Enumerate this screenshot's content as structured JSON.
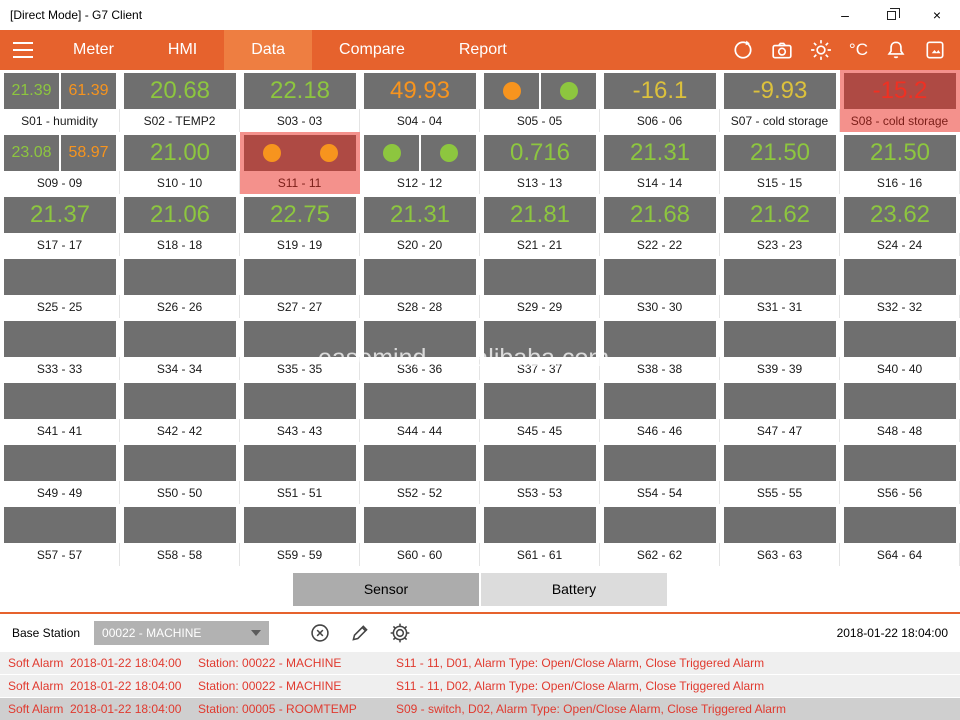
{
  "window": {
    "title": "[Direct Mode] - G7 Client",
    "minimize_glyph": "–",
    "close_glyph": "×"
  },
  "nav": {
    "items": [
      "Meter",
      "HMI",
      "Data",
      "Compare",
      "Report"
    ],
    "active": "Data",
    "temp_unit": "°C"
  },
  "colors": {
    "accent_orange": "#E6622D",
    "active_tab": "#EE7E41",
    "value_green": "#8DC63F",
    "value_orange": "#F7941E",
    "value_yellow": "#DCC13C",
    "value_red": "#F03022",
    "alarm_tile_bg": "#F4918C",
    "alarm_box_bg": "#AE4A44"
  },
  "grid": {
    "tiles": [
      {
        "label": "S01 - humidity",
        "type": "dual",
        "values": [
          {
            "text": "21.39",
            "color": "green"
          },
          {
            "text": "61.39",
            "color": "orange"
          }
        ]
      },
      {
        "label": "S02 - TEMP2",
        "type": "value",
        "value": "20.68",
        "color": "green"
      },
      {
        "label": "S03 - 03",
        "type": "value",
        "value": "22.18",
        "color": "green"
      },
      {
        "label": "S04 - 04",
        "type": "value",
        "value": "49.93",
        "color": "orange"
      },
      {
        "label": "S05 - 05",
        "type": "circles",
        "dots": [
          "orange",
          "green"
        ]
      },
      {
        "label": "S06 - 06",
        "type": "value",
        "value": "-16.1",
        "color": "yellow"
      },
      {
        "label": "S07 - cold storage",
        "type": "value",
        "value": "-9.93",
        "color": "yellow"
      },
      {
        "label": "S08 - cold storage",
        "type": "value",
        "value": "-15.2",
        "color": "red",
        "alarm": true
      },
      {
        "label": "S09 - 09",
        "type": "dual",
        "values": [
          {
            "text": "23.08",
            "color": "green"
          },
          {
            "text": "58.97",
            "color": "orange"
          }
        ]
      },
      {
        "label": "S10 - 10",
        "type": "value",
        "value": "21.00",
        "color": "green"
      },
      {
        "label": "S11 - 11",
        "type": "circles",
        "dots": [
          "orange",
          "orange"
        ],
        "alarm": true
      },
      {
        "label": "S12 - 12",
        "type": "circles",
        "dots": [
          "green",
          "green"
        ]
      },
      {
        "label": "S13 - 13",
        "type": "value",
        "value": "0.716",
        "color": "green"
      },
      {
        "label": "S14 - 14",
        "type": "value",
        "value": "21.31",
        "color": "green"
      },
      {
        "label": "S15 - 15",
        "type": "value",
        "value": "21.50",
        "color": "green"
      },
      {
        "label": "S16 - 16",
        "type": "value",
        "value": "21.50",
        "color": "green"
      },
      {
        "label": "S17 - 17",
        "type": "value",
        "value": "21.37",
        "color": "green"
      },
      {
        "label": "S18 - 18",
        "type": "value",
        "value": "21.06",
        "color": "green"
      },
      {
        "label": "S19 - 19",
        "type": "value",
        "value": "22.75",
        "color": "green"
      },
      {
        "label": "S20 - 20",
        "type": "value",
        "value": "21.31",
        "color": "green"
      },
      {
        "label": "S21 - 21",
        "type": "value",
        "value": "21.81",
        "color": "green"
      },
      {
        "label": "S22 - 22",
        "type": "value",
        "value": "21.68",
        "color": "green"
      },
      {
        "label": "S23 - 23",
        "type": "value",
        "value": "21.62",
        "color": "green"
      },
      {
        "label": "S24 - 24",
        "type": "value",
        "value": "23.62",
        "color": "green"
      },
      {
        "label": "S25 - 25",
        "type": "empty"
      },
      {
        "label": "S26 - 26",
        "type": "empty"
      },
      {
        "label": "S27 - 27",
        "type": "empty"
      },
      {
        "label": "S28 - 28",
        "type": "empty"
      },
      {
        "label": "S29 - 29",
        "type": "empty"
      },
      {
        "label": "S30 - 30",
        "type": "empty"
      },
      {
        "label": "S31 - 31",
        "type": "empty"
      },
      {
        "label": "S32 - 32",
        "type": "empty"
      },
      {
        "label": "S33 - 33",
        "type": "empty"
      },
      {
        "label": "S34 - 34",
        "type": "empty"
      },
      {
        "label": "S35 - 35",
        "type": "empty"
      },
      {
        "label": "S36 - 36",
        "type": "empty"
      },
      {
        "label": "S37 - 37",
        "type": "empty"
      },
      {
        "label": "S38 - 38",
        "type": "empty"
      },
      {
        "label": "S39 - 39",
        "type": "empty"
      },
      {
        "label": "S40 - 40",
        "type": "empty"
      },
      {
        "label": "S41 - 41",
        "type": "empty"
      },
      {
        "label": "S42 - 42",
        "type": "empty"
      },
      {
        "label": "S43 - 43",
        "type": "empty"
      },
      {
        "label": "S44 - 44",
        "type": "empty"
      },
      {
        "label": "S45 - 45",
        "type": "empty"
      },
      {
        "label": "S46 - 46",
        "type": "empty"
      },
      {
        "label": "S47 - 47",
        "type": "empty"
      },
      {
        "label": "S48 - 48",
        "type": "empty"
      },
      {
        "label": "S49 - 49",
        "type": "empty"
      },
      {
        "label": "S50 - 50",
        "type": "empty"
      },
      {
        "label": "S51 - 51",
        "type": "empty"
      },
      {
        "label": "S52 - 52",
        "type": "empty"
      },
      {
        "label": "S53 - 53",
        "type": "empty"
      },
      {
        "label": "S54 - 54",
        "type": "empty"
      },
      {
        "label": "S55 - 55",
        "type": "empty"
      },
      {
        "label": "S56 - 56",
        "type": "empty"
      },
      {
        "label": "S57 - 57",
        "type": "empty"
      },
      {
        "label": "S58 - 58",
        "type": "empty"
      },
      {
        "label": "S59 - 59",
        "type": "empty"
      },
      {
        "label": "S60 - 60",
        "type": "empty"
      },
      {
        "label": "S61 - 61",
        "type": "empty"
      },
      {
        "label": "S62 - 62",
        "type": "empty"
      },
      {
        "label": "S63 - 63",
        "type": "empty"
      },
      {
        "label": "S64 - 64",
        "type": "empty"
      }
    ]
  },
  "watermark": {
    "left": "easemind",
    "right": "alibaba.com"
  },
  "toggle": {
    "options": [
      {
        "label": "Sensor",
        "active": true
      },
      {
        "label": "Battery",
        "active": false
      }
    ]
  },
  "basestation": {
    "label": "Base Station",
    "value": "00022 - MACHINE",
    "timestamp": "2018-01-22 18:04:00"
  },
  "alarm_log": {
    "rows": [
      {
        "type": "Soft Alarm",
        "time": "2018-01-22 18:04:00",
        "station": "Station: 00022 - MACHINE",
        "detail": "S11 - 11, D01, Alarm Type: Open/Close Alarm, Close Triggered Alarm",
        "selected": false
      },
      {
        "type": "Soft Alarm",
        "time": "2018-01-22 18:04:00",
        "station": "Station: 00022 - MACHINE",
        "detail": "S11 - 11, D02, Alarm Type: Open/Close Alarm, Close Triggered Alarm",
        "selected": false
      },
      {
        "type": "Soft Alarm",
        "time": "2018-01-22 18:04:00",
        "station": "Station: 00005 - ROOMTEMP",
        "detail": "S09 - switch, D02, Alarm Type: Open/Close Alarm, Close Triggered Alarm",
        "selected": true
      }
    ]
  }
}
